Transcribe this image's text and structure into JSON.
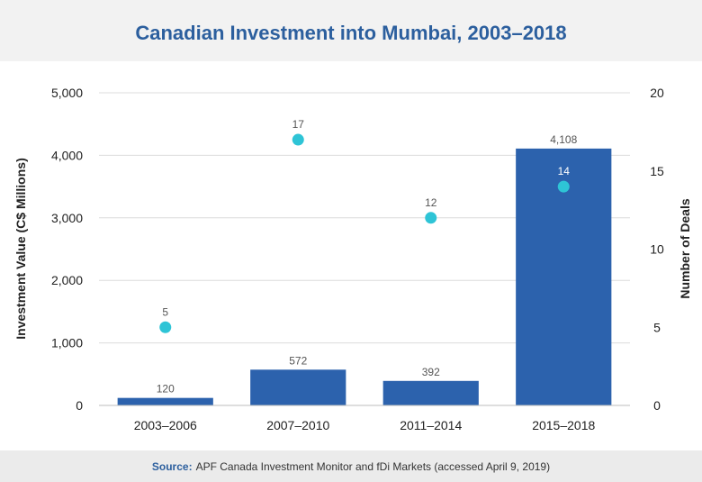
{
  "title": "Canadian Investment into Mumbai, 2003–2018",
  "footer": {
    "source_label": "Source:",
    "source_text": "APF Canada Investment Monitor and fDi Markets (accessed April 9, 2019)"
  },
  "colors": {
    "bar": "#2c62ad",
    "dot": "#2ec4d6",
    "title": "#2c5f9e",
    "grid": "#dcdcdc",
    "axis_text": "#222222",
    "label_text": "#555555"
  },
  "chart_data": {
    "type": "bar",
    "categories": [
      "2003–2006",
      "2007–2010",
      "2011–2014",
      "2015–2018"
    ],
    "series": [
      {
        "values": [
          120,
          572,
          392,
          4108
        ],
        "axis": "left",
        "kind": "bar",
        "labels": [
          "120",
          "572",
          "392",
          "4,108"
        ]
      },
      {
        "values": [
          5,
          17,
          12,
          14
        ],
        "axis": "right",
        "kind": "scatter",
        "labels": [
          "5",
          "17",
          "12",
          "14"
        ]
      }
    ],
    "ylabel": "Investment Value (C$ Millions)",
    "y2label": "Number of Deals",
    "ylim": [
      0,
      5000
    ],
    "y2lim": [
      0,
      20
    ],
    "yticks": [
      "0",
      "1,000",
      "2,000",
      "3,000",
      "4,000",
      "5,000"
    ],
    "y2ticks": [
      "0",
      "5",
      "10",
      "15",
      "20"
    ],
    "grid": true
  }
}
